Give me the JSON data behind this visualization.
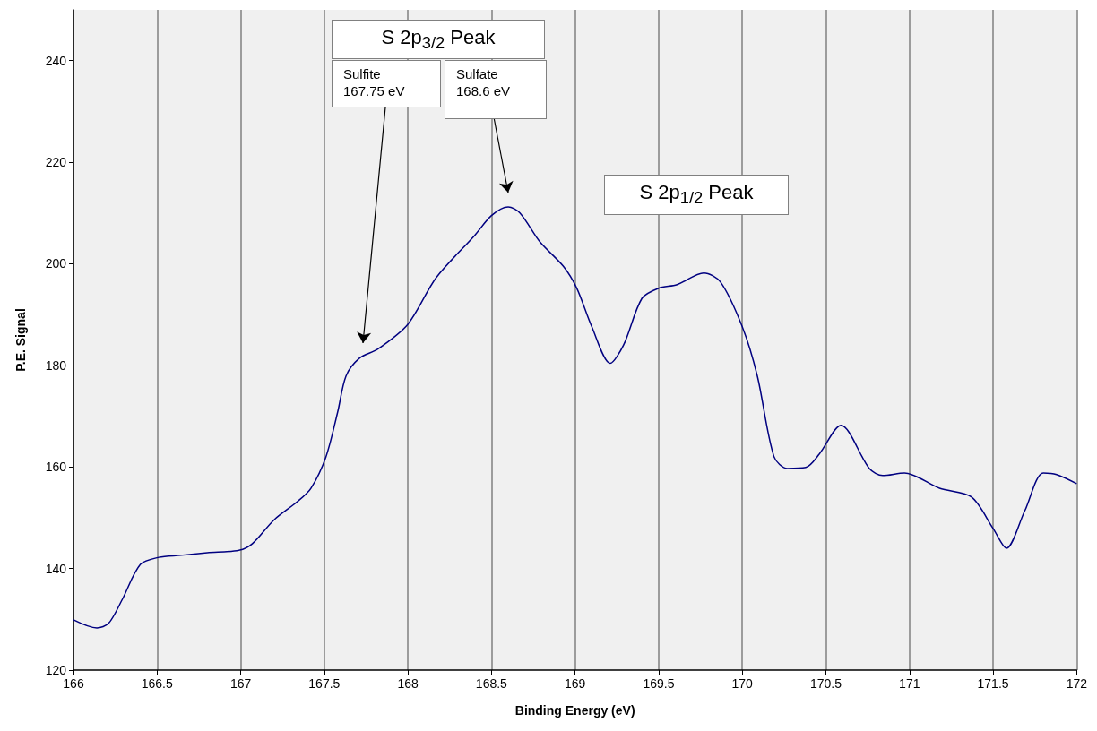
{
  "chart_data": {
    "type": "line",
    "xlabel": "Binding Energy (eV)",
    "ylabel": "P.E. Signal",
    "xlim": [
      166,
      172
    ],
    "ylim": [
      120,
      250
    ],
    "xticks": [
      166,
      166.5,
      167,
      167.5,
      168,
      168.5,
      169,
      169.5,
      170,
      170.5,
      171,
      171.5,
      172
    ],
    "yticks": [
      120,
      140,
      160,
      180,
      200,
      220,
      240
    ],
    "grid": "x",
    "marker": "none",
    "line_style": "solid",
    "x": [
      166,
      166.14,
      166.21,
      166.29,
      166.4,
      166.51,
      166.64,
      166.8,
      166.99,
      167.07,
      167.2,
      167.34,
      167.42,
      167.51,
      167.58,
      167.63,
      167.71,
      167.82,
      168,
      168.17,
      168.4,
      168.5,
      168.6,
      168.67,
      168.79,
      168.93,
      169.01,
      169.1,
      169.21,
      169.29,
      169.4,
      169.5,
      169.61,
      169.77,
      169.87,
      170,
      170.09,
      170.19,
      170.27,
      170.38,
      170.46,
      170.59,
      170.76,
      170.84,
      170.97,
      171.18,
      171.37,
      171.5,
      171.58,
      171.69,
      171.8,
      171.88,
      172
    ],
    "series": [
      {
        "color": "#000080",
        "values": [
          129.9,
          128.3,
          129.2,
          133.8,
          140.8,
          142.2,
          142.6,
          143.1,
          143.6,
          144.9,
          149.6,
          153.2,
          155.8,
          162,
          170.8,
          177.9,
          181.4,
          183.2,
          188.1,
          197.3,
          205.6,
          209.5,
          211.2,
          210,
          204.3,
          199.5,
          195.2,
          187.6,
          180.4,
          184,
          193.2,
          195.2,
          195.9,
          198.2,
          196.4,
          187.6,
          177.9,
          162,
          159.7,
          159.9,
          162.5,
          168.2,
          159.7,
          158.3,
          158.8,
          155.8,
          154.1,
          147.9,
          144,
          151.4,
          158.8,
          158.5,
          156.7
        ]
      }
    ],
    "annotations": [
      "S 2p$_{3/2}$ Peak",
      "Sulfite\n167.75 eV",
      "Sulfate\n168.6 eV",
      "S 2p$_{1/2}$ Peak"
    ]
  }
}
